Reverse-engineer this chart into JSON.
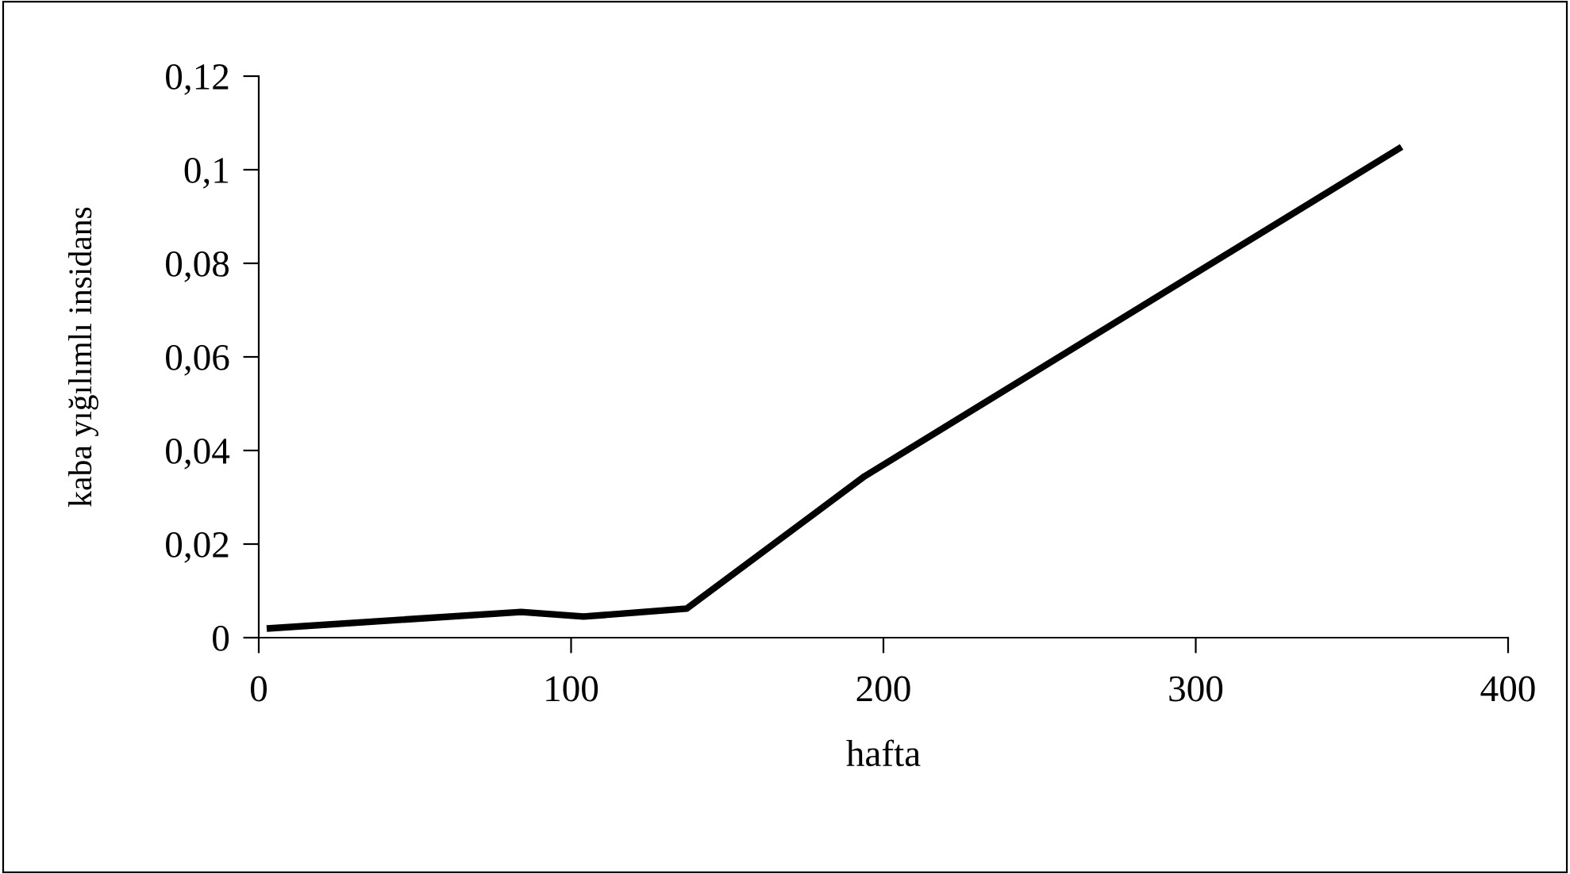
{
  "chart_data": {
    "type": "line",
    "xlabel": "hafta",
    "ylabel": "kaba yığılımlı insidans",
    "x": [
      3.6,
      84,
      104,
      137,
      194,
      365
    ],
    "series": [
      {
        "color": "#000000",
        "values": [
          0.002,
          0.0055,
          0.0045,
          0.0062,
          0.0345,
          0.1045
        ]
      }
    ],
    "xlim": [
      0,
      400
    ],
    "xticks": [
      0,
      100,
      200,
      300,
      400
    ],
    "ylim": [
      0,
      0.12
    ],
    "yticks": [
      {
        "value": 0,
        "label": "0"
      },
      {
        "value": 0.02,
        "label": "0,02"
      },
      {
        "value": 0.04,
        "label": "0,04"
      },
      {
        "value": 0.06,
        "label": "0,06"
      },
      {
        "value": 0.08,
        "label": "0,08"
      },
      {
        "value": 0.1,
        "label": "0,1"
      },
      {
        "value": 0.12,
        "label": "0,12"
      }
    ],
    "grid": false,
    "marker": "none",
    "line_style": "solid"
  }
}
